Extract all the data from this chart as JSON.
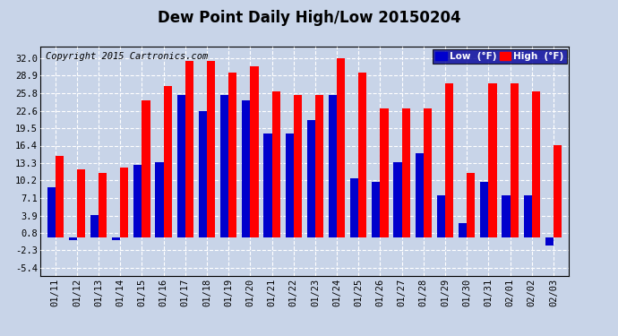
{
  "title": "Dew Point Daily High/Low 20150204",
  "copyright": "Copyright 2015 Cartronics.com",
  "dates": [
    "01/11",
    "01/12",
    "01/13",
    "01/14",
    "01/15",
    "01/16",
    "01/17",
    "01/18",
    "01/19",
    "01/20",
    "01/21",
    "01/22",
    "01/23",
    "01/24",
    "01/25",
    "01/26",
    "01/27",
    "01/28",
    "01/29",
    "01/30",
    "01/31",
    "02/01",
    "02/02",
    "02/03"
  ],
  "high": [
    14.5,
    12.2,
    11.5,
    12.5,
    24.5,
    27.0,
    31.5,
    31.5,
    29.5,
    30.5,
    26.0,
    25.5,
    25.5,
    32.0,
    29.5,
    23.0,
    23.0,
    23.0,
    27.5,
    11.5,
    27.5,
    27.5,
    26.0,
    16.5
  ],
  "low": [
    9.0,
    -0.5,
    4.0,
    -0.5,
    13.0,
    13.5,
    25.5,
    22.5,
    25.5,
    24.5,
    18.5,
    18.5,
    21.0,
    25.5,
    10.5,
    10.0,
    13.5,
    15.0,
    7.5,
    2.5,
    10.0,
    7.5,
    7.5,
    -1.5
  ],
  "high_color": "#ff0000",
  "low_color": "#0000cc",
  "bg_color": "#c8d4e8",
  "plot_bg": "#c8d4e8",
  "grid_color": "#ffffff",
  "yticks": [
    -5.4,
    -2.3,
    0.8,
    3.9,
    7.1,
    10.2,
    13.3,
    16.4,
    19.5,
    22.6,
    25.8,
    28.9,
    32.0
  ],
  "ylim": [
    -6.8,
    34.0
  ],
  "bar_width": 0.38,
  "title_fontsize": 12,
  "copyright_fontsize": 7.5,
  "legend_low_label": "Low  (°F)",
  "legend_high_label": "High  (°F)",
  "legend_bg": "#000099",
  "legend_text_color": "#ffffff"
}
